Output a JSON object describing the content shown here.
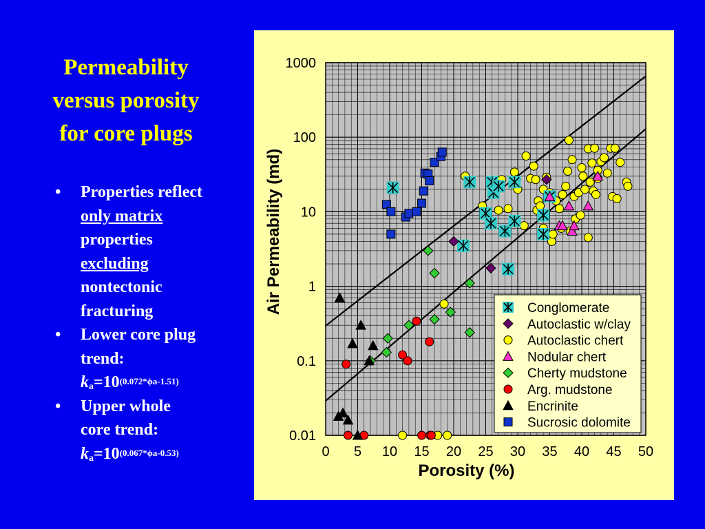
{
  "slide": {
    "background_color": "#0000ee",
    "title_color": "#ffff00",
    "title_lines": [
      "Permeability",
      "versus porosity",
      "for core plugs"
    ],
    "bullets": [
      {
        "parts": [
          "Properties reflect",
          "only matrix",
          "properties",
          "excluding",
          "nontectonic",
          "fracturing"
        ]
      },
      {
        "parts": [
          "Lower core plug",
          "trend:"
        ],
        "k": "k",
        "k_sub": "a",
        "eq": "=10",
        "exponent_pre": "(0.072*",
        "phi": "ϕ",
        "exponent_post": "a-1.51)"
      },
      {
        "parts": [
          "Upper whole",
          "core trend:"
        ],
        "k": "k",
        "k_sub": "a",
        "eq": "=10",
        "exponent_pre": "(0.067*",
        "phi": "ϕ",
        "exponent_post": "a-0.53)"
      }
    ],
    "bullet_symbol": "•"
  },
  "chart_data": {
    "type": "scatter",
    "panel_color": "#ffffa8",
    "plot_color": "#c0c0c0",
    "xlabel": "Porosity (%)",
    "ylabel": "Air Permeability (md)",
    "xlim": [
      0,
      50
    ],
    "ylim": [
      0.01,
      1000
    ],
    "yscale": "log",
    "xticks": [
      "0",
      "5",
      "10",
      "15",
      "20",
      "25",
      "30",
      "35",
      "40",
      "45",
      "50"
    ],
    "yticks": [
      "0.01",
      "0.1",
      "1",
      "10",
      "100",
      "1000"
    ],
    "grid": true,
    "legend_position": "bottom-right",
    "trendlines": [
      {
        "x": [
          0,
          50
        ],
        "y": [
          0.029,
          129
        ]
      },
      {
        "x": [
          0,
          50
        ],
        "y": [
          0.295,
          660
        ]
      }
    ],
    "series": [
      {
        "name": "Conglomerate",
        "marker": "asterisk-square",
        "color": "#33cccc",
        "points": [
          [
            10.5,
            21
          ],
          [
            21.5,
            3.5
          ],
          [
            22.5,
            25
          ],
          [
            25,
            9.5
          ],
          [
            25.8,
            7
          ],
          [
            26,
            25
          ],
          [
            26.2,
            18
          ],
          [
            27,
            22
          ],
          [
            28,
            5.5
          ],
          [
            28.5,
            1.7
          ],
          [
            29.5,
            25
          ],
          [
            29.5,
            7.5
          ],
          [
            34,
            5
          ],
          [
            34,
            9
          ],
          [
            35,
            16
          ]
        ]
      },
      {
        "name": "Autoclastic w/clay",
        "marker": "diamond",
        "color": "#660066",
        "points": [
          [
            20,
            4
          ],
          [
            25.8,
            1.75
          ],
          [
            34.5,
            27
          ]
        ]
      },
      {
        "name": "Autoclastic chert",
        "marker": "circle",
        "color": "#ffff00",
        "points": [
          [
            12,
            0.01
          ],
          [
            17.5,
            0.01
          ],
          [
            18.5,
            0.58
          ],
          [
            19,
            0.01
          ],
          [
            21.8,
            30
          ],
          [
            24.5,
            12
          ],
          [
            27,
            10.5
          ],
          [
            27.5,
            27
          ],
          [
            28.5,
            11
          ],
          [
            29.5,
            34
          ],
          [
            29.8,
            27
          ],
          [
            30,
            20
          ],
          [
            31,
            6.5
          ],
          [
            31.3,
            56
          ],
          [
            32,
            28
          ],
          [
            32.5,
            41
          ],
          [
            32.8,
            27
          ],
          [
            33,
            10.5
          ],
          [
            33.2,
            14
          ],
          [
            33.5,
            12
          ],
          [
            34,
            20
          ],
          [
            34,
            6
          ],
          [
            34.5,
            29
          ],
          [
            35,
            18
          ],
          [
            35.3,
            4
          ],
          [
            35.5,
            5
          ],
          [
            36,
            14
          ],
          [
            36.5,
            11
          ],
          [
            36.8,
            6
          ],
          [
            37,
            17
          ],
          [
            37.5,
            22
          ],
          [
            37.8,
            35
          ],
          [
            38,
            91
          ],
          [
            38.2,
            5.5
          ],
          [
            38.5,
            50
          ],
          [
            38.8,
            16
          ],
          [
            39,
            8
          ],
          [
            39.5,
            18
          ],
          [
            39.8,
            9
          ],
          [
            40,
            39
          ],
          [
            40.2,
            30
          ],
          [
            40.5,
            20
          ],
          [
            41,
            4.5
          ],
          [
            41,
            70
          ],
          [
            41.3,
            25
          ],
          [
            41.6,
            45
          ],
          [
            41.8,
            19
          ],
          [
            42,
            71
          ],
          [
            42.2,
            17
          ],
          [
            42.5,
            36
          ],
          [
            42.5,
            28
          ],
          [
            43,
            47
          ],
          [
            43.5,
            53
          ],
          [
            44,
            33
          ],
          [
            44.5,
            71
          ],
          [
            44.8,
            16
          ],
          [
            45.2,
            71
          ],
          [
            45.5,
            15
          ],
          [
            46,
            46
          ],
          [
            47,
            25
          ],
          [
            47.2,
            22
          ]
        ]
      },
      {
        "name": "Nodular chert",
        "marker": "triangle",
        "color": "#ff33cc",
        "points": [
          [
            35,
            16
          ],
          [
            36.5,
            6.5
          ],
          [
            37,
            6.5
          ],
          [
            38,
            12
          ],
          [
            38.5,
            5.5
          ],
          [
            38.8,
            6.5
          ],
          [
            41,
            12
          ],
          [
            42.5,
            30
          ]
        ]
      },
      {
        "name": "Cherty mudstone",
        "marker": "diamond",
        "color": "#33cc33",
        "points": [
          [
            7,
            0.1
          ],
          [
            9.5,
            0.13
          ],
          [
            9.7,
            0.2
          ],
          [
            13,
            0.3
          ],
          [
            16,
            3
          ],
          [
            17,
            1.5
          ],
          [
            17,
            0.36
          ],
          [
            19.5,
            0.45
          ],
          [
            22.5,
            1.1
          ],
          [
            22.5,
            0.24
          ]
        ]
      },
      {
        "name": "Arg. mudstone",
        "marker": "circle",
        "color": "#ff0000",
        "points": [
          [
            3.2,
            0.09
          ],
          [
            3.5,
            0.01
          ],
          [
            6,
            0.01
          ],
          [
            12,
            0.12
          ],
          [
            12.8,
            0.1
          ],
          [
            14.2,
            0.34
          ],
          [
            15,
            0.01
          ],
          [
            16.2,
            0.18
          ],
          [
            16.3,
            0.01
          ],
          [
            16.5,
            0.01
          ]
        ]
      },
      {
        "name": "Encrinite",
        "marker": "triangle",
        "color": "#000000",
        "points": [
          [
            2,
            0.018
          ],
          [
            2.2,
            0.7
          ],
          [
            2.7,
            0.02
          ],
          [
            3.5,
            0.016
          ],
          [
            4.2,
            0.17
          ],
          [
            5,
            0.01
          ],
          [
            5.5,
            0.3
          ],
          [
            6.8,
            0.1
          ],
          [
            7.4,
            0.16
          ]
        ]
      },
      {
        "name": "Sucrosic dolomite",
        "marker": "square",
        "color": "#1133cc",
        "points": [
          [
            9.5,
            12.5
          ],
          [
            10.2,
            5
          ],
          [
            10.2,
            10
          ],
          [
            12.5,
            8.5
          ],
          [
            13,
            9.5
          ],
          [
            14.2,
            10
          ],
          [
            15,
            13
          ],
          [
            15.3,
            19
          ],
          [
            15.5,
            33
          ],
          [
            16,
            32
          ],
          [
            16.2,
            26
          ],
          [
            17,
            46
          ],
          [
            18,
            55
          ],
          [
            18.2,
            63
          ]
        ]
      }
    ]
  }
}
